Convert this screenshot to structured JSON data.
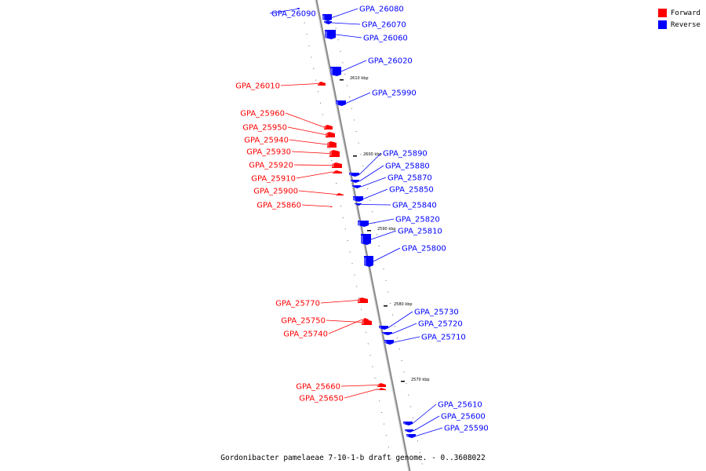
{
  "legend": {
    "forward_label": "Forward",
    "reverse_label": "Reverse",
    "forward_color": "#ff0000",
    "reverse_color": "#0000ff"
  },
  "caption": "Gordonibacter pamelaeae 7-10-1-b draft genome. - 0..3608022",
  "ticks": [
    "2610 kbp",
    "2600 kbp",
    "2590 kbp",
    "2580 kbp",
    "2570 kbp"
  ],
  "genes": [
    {
      "id": "GPA_26090",
      "strand": "reverse"
    },
    {
      "id": "GPA_26080",
      "strand": "reverse"
    },
    {
      "id": "GPA_26070",
      "strand": "reverse"
    },
    {
      "id": "GPA_26060",
      "strand": "reverse"
    },
    {
      "id": "GPA_26020",
      "strand": "reverse"
    },
    {
      "id": "GPA_26010",
      "strand": "forward"
    },
    {
      "id": "GPA_25990",
      "strand": "reverse"
    },
    {
      "id": "GPA_25960",
      "strand": "forward"
    },
    {
      "id": "GPA_25950",
      "strand": "forward"
    },
    {
      "id": "GPA_25940",
      "strand": "forward"
    },
    {
      "id": "GPA_25930",
      "strand": "forward"
    },
    {
      "id": "GPA_25920",
      "strand": "forward"
    },
    {
      "id": "GPA_25910",
      "strand": "forward"
    },
    {
      "id": "GPA_25900",
      "strand": "forward"
    },
    {
      "id": "GPA_25860",
      "strand": "forward"
    },
    {
      "id": "GPA_25890",
      "strand": "reverse"
    },
    {
      "id": "GPA_25880",
      "strand": "reverse"
    },
    {
      "id": "GPA_25870",
      "strand": "reverse"
    },
    {
      "id": "GPA_25850",
      "strand": "reverse"
    },
    {
      "id": "GPA_25840",
      "strand": "reverse"
    },
    {
      "id": "GPA_25820",
      "strand": "reverse"
    },
    {
      "id": "GPA_25810",
      "strand": "reverse"
    },
    {
      "id": "GPA_25800",
      "strand": "reverse"
    },
    {
      "id": "GPA_25770",
      "strand": "forward"
    },
    {
      "id": "GPA_25750",
      "strand": "forward"
    },
    {
      "id": "GPA_25740",
      "strand": "forward"
    },
    {
      "id": "GPA_25730",
      "strand": "reverse"
    },
    {
      "id": "GPA_25720",
      "strand": "reverse"
    },
    {
      "id": "GPA_25710",
      "strand": "reverse"
    },
    {
      "id": "GPA_25660",
      "strand": "forward"
    },
    {
      "id": "GPA_25650",
      "strand": "forward"
    },
    {
      "id": "GPA_25610",
      "strand": "reverse"
    },
    {
      "id": "GPA_25600",
      "strand": "reverse"
    },
    {
      "id": "GPA_25590",
      "strand": "reverse"
    }
  ]
}
